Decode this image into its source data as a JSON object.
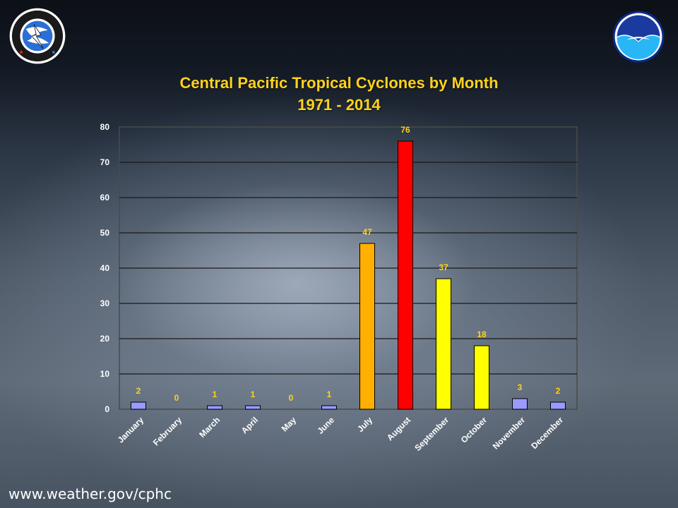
{
  "header": {
    "title_line1": "Central Pacific Tropical Cyclones by Month",
    "title_line2": "1971 - 2014"
  },
  "footer": {
    "url": "www.weather.gov/cphc"
  },
  "logos": {
    "left": "nws-logo-icon",
    "right": "noaa-logo-icon"
  },
  "chart_data": {
    "type": "bar",
    "title": "Central Pacific Tropical Cyclones by Month 1971 - 2014",
    "categories": [
      "January",
      "February",
      "March",
      "April",
      "May",
      "June",
      "July",
      "August",
      "September",
      "October",
      "November",
      "December"
    ],
    "values": [
      2,
      0,
      1,
      1,
      0,
      1,
      47,
      76,
      37,
      18,
      3,
      2
    ],
    "bar_colors": [
      "#9a9aff",
      "#9a9aff",
      "#9a9aff",
      "#9a9aff",
      "#9a9aff",
      "#9a9aff",
      "#ffb000",
      "#ff0000",
      "#ffff00",
      "#ffff00",
      "#9a9aff",
      "#9a9aff"
    ],
    "ylim": [
      0,
      80
    ],
    "yticks": [
      0,
      10,
      20,
      30,
      40,
      50,
      60,
      70,
      80
    ],
    "grid": true,
    "label_color": "#ffd21c"
  }
}
